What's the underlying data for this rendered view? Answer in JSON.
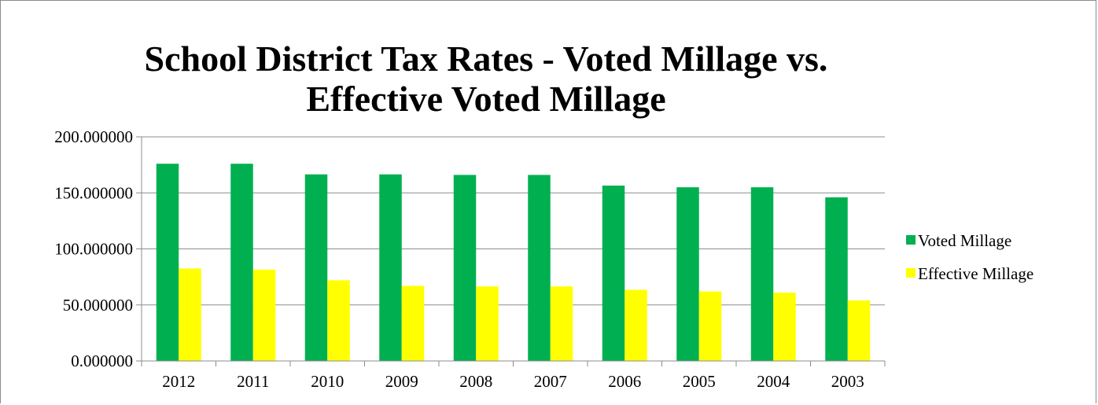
{
  "chart_data": {
    "type": "bar",
    "title": "School District Tax Rates - Voted Millage vs. Effective Voted Millage",
    "title_lines": [
      "School District Tax Rates - Voted Millage vs.",
      "Effective Voted Millage"
    ],
    "categories": [
      "2012",
      "2011",
      "2010",
      "2009",
      "2008",
      "2007",
      "2006",
      "2005",
      "2004",
      "2003"
    ],
    "series": [
      {
        "name": "Voted Millage",
        "color": "#00b050",
        "values": [
          176.0,
          176.0,
          166.5,
          166.5,
          166.0,
          166.0,
          156.5,
          155.0,
          155.0,
          146.0
        ]
      },
      {
        "name": "Effective Millage",
        "color": "#ffff00",
        "values": [
          82.5,
          81.5,
          72.0,
          67.0,
          66.5,
          66.5,
          63.5,
          62.0,
          61.0,
          54.0
        ]
      }
    ],
    "ylim": [
      0,
      200
    ],
    "yticks": [
      "0.000000",
      "50.000000",
      "100.000000",
      "150.000000",
      "200.000000"
    ],
    "ytick_values": [
      0,
      50,
      100,
      150,
      200
    ],
    "grid": true,
    "legend_position": "right",
    "xlabel": "",
    "ylabel": ""
  }
}
